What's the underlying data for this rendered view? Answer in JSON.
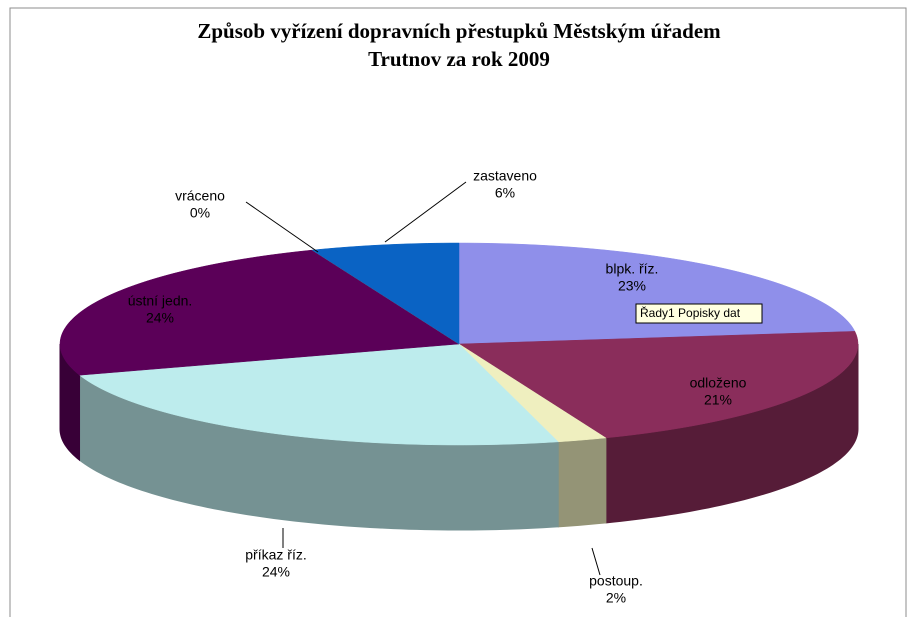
{
  "chart_data": {
    "type": "pie",
    "title": [
      "Způsob vyřízení dopravních přestupků Městským úřadem",
      "Trutnov za rok 2009"
    ],
    "categories": [
      "blpk. říz.",
      "odloženo",
      "postoup.",
      "příkaz říz.",
      "ústní jedn.",
      "vráceno",
      "zastaveno"
    ],
    "values": [
      23,
      21,
      2,
      24,
      24,
      0,
      6
    ],
    "value_labels": [
      "23%",
      "21%",
      "2%",
      "24%",
      "24%",
      "0%",
      "6%"
    ],
    "colors": [
      "#8f8fea",
      "#8a2d5b",
      "#efefbf",
      "#bdeced",
      "#5b0058",
      "#c0702c",
      "#0a63c4"
    ],
    "tooltip": "Řady1 Popisky dat"
  }
}
